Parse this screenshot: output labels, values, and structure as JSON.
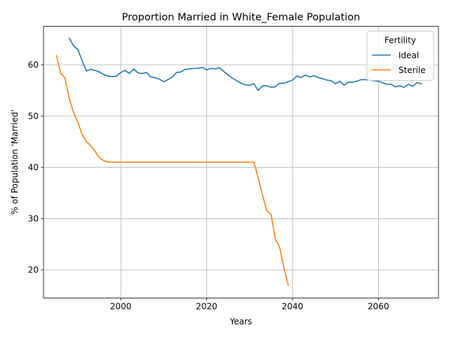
{
  "chart_data": {
    "type": "line",
    "title": "Proportion Married in White_Female Population",
    "xlabel": "Years",
    "ylabel": "% of Population 'Married'",
    "xlim": [
      1982,
      2074
    ],
    "ylim": [
      14.5,
      67.5
    ],
    "xticks": [
      2000,
      2020,
      2040,
      2060
    ],
    "yticks": [
      20,
      30,
      40,
      50,
      60
    ],
    "grid": true,
    "legend": {
      "title": "Fertility",
      "position": "top-right"
    },
    "series": [
      {
        "name": "Ideal",
        "color": "#1f77b4",
        "x": [
          1988,
          1989,
          1990,
          1991,
          1992,
          1993,
          1994,
          1995,
          1996,
          1997,
          1998,
          1999,
          2000,
          2001,
          2002,
          2003,
          2004,
          2005,
          2006,
          2007,
          2008,
          2009,
          2010,
          2011,
          2012,
          2013,
          2014,
          2015,
          2016,
          2017,
          2018,
          2019,
          2020,
          2021,
          2022,
          2023,
          2024,
          2025,
          2026,
          2027,
          2028,
          2029,
          2030,
          2031,
          2032,
          2033,
          2034,
          2035,
          2036,
          2037,
          2038,
          2039,
          2040,
          2041,
          2042,
          2043,
          2044,
          2045,
          2046,
          2047,
          2048,
          2049,
          2050,
          2051,
          2052,
          2053,
          2054,
          2055,
          2056,
          2057,
          2058,
          2059,
          2060,
          2061,
          2062,
          2063,
          2064,
          2065,
          2066,
          2067,
          2068,
          2069,
          2070
        ],
        "values": [
          65.2,
          63.7,
          63.0,
          60.8,
          58.8,
          59.1,
          58.9,
          58.6,
          58.1,
          57.8,
          57.7,
          57.8,
          58.5,
          58.9,
          58.3,
          59.2,
          58.4,
          58.3,
          58.5,
          57.6,
          57.5,
          57.2,
          56.7,
          57.1,
          57.6,
          58.5,
          58.6,
          59.1,
          59.2,
          59.3,
          59.3,
          59.5,
          59.0,
          59.3,
          59.2,
          59.4,
          58.7,
          58.0,
          57.4,
          56.9,
          56.4,
          56.1,
          56.0,
          56.3,
          55.0,
          55.9,
          55.9,
          55.6,
          55.7,
          56.4,
          56.4,
          56.7,
          57.0,
          57.8,
          57.5,
          58.0,
          57.6,
          57.9,
          57.5,
          57.3,
          57.0,
          56.9,
          56.3,
          56.8,
          56.0,
          56.6,
          56.6,
          56.8,
          57.1,
          57.1,
          57.0,
          56.9,
          56.8,
          56.5,
          56.2,
          56.2,
          55.7,
          55.9,
          55.6,
          56.2,
          55.8,
          56.5,
          56.3
        ]
      },
      {
        "name": "Sterile",
        "color": "#ff7f0e",
        "x": [
          1985,
          1986,
          1987,
          1988,
          1989,
          1990,
          1991,
          1992,
          1993,
          1994,
          1995,
          1996,
          1997,
          1998,
          1999,
          2000,
          2001,
          2002,
          2003,
          2004,
          2005,
          2006,
          2007,
          2008,
          2009,
          2010,
          2011,
          2012,
          2013,
          2014,
          2015,
          2016,
          2017,
          2018,
          2019,
          2020,
          2021,
          2022,
          2023,
          2024,
          2025,
          2026,
          2027,
          2028,
          2029,
          2030,
          2031,
          2032,
          2033,
          2034,
          2035,
          2036,
          2037,
          2038,
          2039
        ],
        "values": [
          61.8,
          58.4,
          57.4,
          53.4,
          50.7,
          48.8,
          46.4,
          45.0,
          44.2,
          43.1,
          41.9,
          41.3,
          41.0,
          41.0,
          41.0,
          41.0,
          41.0,
          41.0,
          41.0,
          41.0,
          41.0,
          41.0,
          41.0,
          41.0,
          41.0,
          41.0,
          41.0,
          41.0,
          41.0,
          41.0,
          41.0,
          41.0,
          41.0,
          41.0,
          41.0,
          41.0,
          41.0,
          41.0,
          41.0,
          41.0,
          41.0,
          41.0,
          41.0,
          41.0,
          41.0,
          41.0,
          41.0,
          38.0,
          34.6,
          31.6,
          30.8,
          26.0,
          24.4,
          20.4,
          17.0
        ]
      }
    ]
  }
}
